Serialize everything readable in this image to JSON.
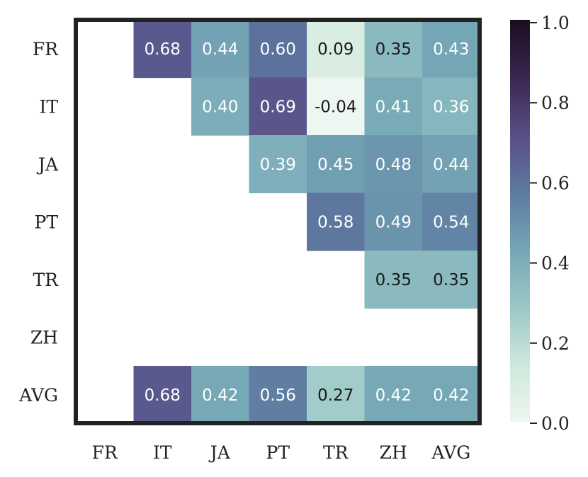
{
  "chart_data": {
    "type": "heatmap",
    "title": "",
    "xlabel": "",
    "ylabel": "",
    "row_labels": [
      "FR",
      "IT",
      "JA",
      "PT",
      "TR",
      "ZH",
      "AVG"
    ],
    "col_labels": [
      "FR",
      "IT",
      "JA",
      "PT",
      "TR",
      "ZH",
      "AVG"
    ],
    "values": [
      [
        null,
        0.68,
        0.44,
        0.6,
        0.09,
        0.35,
        0.43
      ],
      [
        null,
        null,
        0.4,
        0.69,
        -0.04,
        0.41,
        0.36
      ],
      [
        null,
        null,
        null,
        0.39,
        0.45,
        0.48,
        0.44
      ],
      [
        null,
        null,
        null,
        null,
        0.58,
        0.49,
        0.54
      ],
      [
        null,
        null,
        null,
        null,
        null,
        0.35,
        0.35
      ],
      [
        null,
        null,
        null,
        null,
        null,
        null,
        null
      ],
      [
        null,
        0.68,
        0.42,
        0.56,
        0.27,
        0.42,
        0.42
      ]
    ],
    "cell_text": [
      [
        null,
        "0.68",
        "0.44",
        "0.60",
        "0.09",
        "0.35",
        "0.43"
      ],
      [
        null,
        null,
        "0.40",
        "0.69",
        "-0.04",
        "0.41",
        "0.36"
      ],
      [
        null,
        null,
        null,
        "0.39",
        "0.45",
        "0.48",
        "0.44"
      ],
      [
        null,
        null,
        null,
        null,
        "0.58",
        "0.49",
        "0.54"
      ],
      [
        null,
        null,
        null,
        null,
        null,
        "0.35",
        "0.35"
      ],
      [
        null,
        null,
        null,
        null,
        null,
        null,
        null
      ],
      [
        null,
        "0.68",
        "0.42",
        "0.56",
        "0.27",
        "0.42",
        "0.42"
      ]
    ],
    "colorbar": {
      "range": [
        0.0,
        1.0
      ],
      "ticks": [
        0.0,
        0.2,
        0.4,
        0.6,
        0.8,
        1.0
      ],
      "tick_labels": [
        "0.0",
        "0.2",
        "0.4",
        "0.6",
        "0.8",
        "1.0"
      ]
    },
    "colormap": [
      "#edf6f0",
      "#cfe8dc",
      "#9cc9c7",
      "#74a6b5",
      "#5d7aa0",
      "#594f87",
      "#3a2550",
      "#1b0d1e"
    ]
  }
}
